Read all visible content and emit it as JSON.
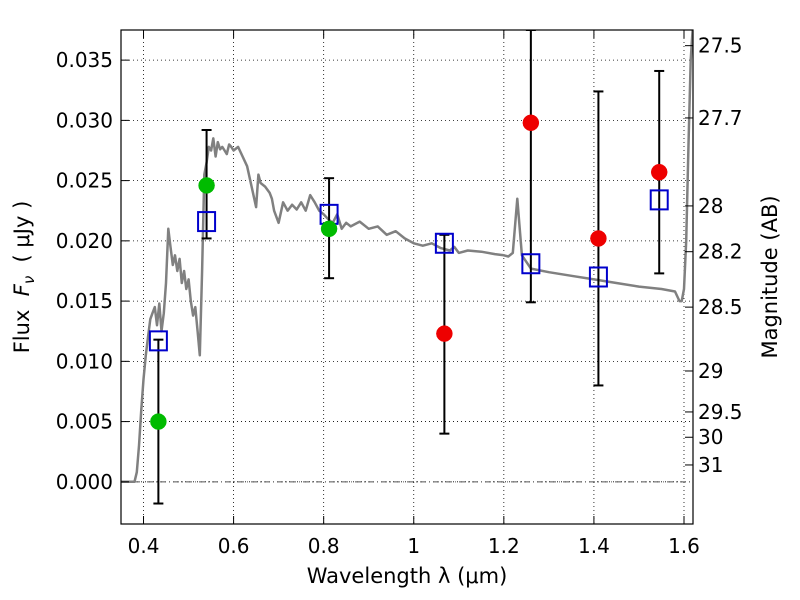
{
  "chart_data": {
    "type": "scatter",
    "title": "",
    "xlabel": "Wavelength  λ (μm)",
    "ylabel": "Flux  F_ν  ( μJy )",
    "ylabel_parts": {
      "prefix": "Flux  ",
      "symbol": "F",
      "subscript": "ν",
      "suffix": "  ( μJy )"
    },
    "y2label": "Magnitude (AB)",
    "xlim": [
      0.35,
      1.62
    ],
    "ylim": [
      -0.0035,
      0.0375
    ],
    "grid": true,
    "x_ticks": [
      0.4,
      0.6,
      0.8,
      1.0,
      1.2,
      1.4,
      1.6
    ],
    "x_tick_labels": [
      "0.4",
      "0.6",
      "0.8",
      "1",
      "1.2",
      "1.4",
      "1.6"
    ],
    "y_ticks": [
      0.0,
      0.005,
      0.01,
      0.015,
      0.02,
      0.025,
      0.03,
      0.035
    ],
    "y_tick_labels": [
      "0.000",
      "0.005",
      "0.010",
      "0.015",
      "0.020",
      "0.025",
      "0.030",
      "0.035"
    ],
    "y2_ticks": [
      {
        "flux": 0.0362,
        "label": "27.5"
      },
      {
        "flux": 0.0302,
        "label": "27.7"
      },
      {
        "flux": 0.0229,
        "label": "28"
      },
      {
        "flux": 0.0191,
        "label": "28.2"
      },
      {
        "flux": 0.0145,
        "label": "28.5"
      },
      {
        "flux": 0.0092,
        "label": "29"
      },
      {
        "flux": 0.0058,
        "label": "29.5"
      },
      {
        "flux": 0.0037,
        "label": "30"
      },
      {
        "flux": 0.0014,
        "label": "31"
      }
    ],
    "series": [
      {
        "name": "model SED",
        "kind": "line",
        "color": "#808080",
        "x": [
          0.35,
          0.38,
          0.385,
          0.39,
          0.395,
          0.4,
          0.405,
          0.41,
          0.415,
          0.42,
          0.425,
          0.43,
          0.435,
          0.44,
          0.445,
          0.45,
          0.455,
          0.46,
          0.465,
          0.47,
          0.475,
          0.48,
          0.485,
          0.49,
          0.495,
          0.5,
          0.505,
          0.51,
          0.515,
          0.52,
          0.525,
          0.53,
          0.535,
          0.54,
          0.545,
          0.55,
          0.555,
          0.56,
          0.565,
          0.57,
          0.575,
          0.58,
          0.585,
          0.59,
          0.595,
          0.6,
          0.61,
          0.62,
          0.63,
          0.64,
          0.65,
          0.655,
          0.66,
          0.67,
          0.68,
          0.685,
          0.69,
          0.7,
          0.71,
          0.72,
          0.73,
          0.74,
          0.75,
          0.76,
          0.77,
          0.78,
          0.79,
          0.8,
          0.81,
          0.82,
          0.83,
          0.84,
          0.85,
          0.86,
          0.88,
          0.9,
          0.92,
          0.94,
          0.96,
          0.98,
          1.0,
          1.02,
          1.04,
          1.06,
          1.08,
          1.09,
          1.1,
          1.12,
          1.15,
          1.18,
          1.2,
          1.21,
          1.22,
          1.23,
          1.24,
          1.26,
          1.3,
          1.35,
          1.4,
          1.45,
          1.5,
          1.55,
          1.58,
          1.59,
          1.595,
          1.6,
          1.605,
          1.61,
          1.615,
          1.62
        ],
        "y": [
          0.0,
          0.0,
          0.0008,
          0.003,
          0.006,
          0.0085,
          0.0105,
          0.012,
          0.0135,
          0.014,
          0.0145,
          0.013,
          0.0148,
          0.0125,
          0.014,
          0.0165,
          0.021,
          0.0195,
          0.018,
          0.0188,
          0.0175,
          0.0185,
          0.0165,
          0.0175,
          0.016,
          0.0168,
          0.015,
          0.0138,
          0.0145,
          0.0125,
          0.0105,
          0.0175,
          0.0255,
          0.0265,
          0.0278,
          0.0275,
          0.0285,
          0.027,
          0.0282,
          0.0276,
          0.0278,
          0.0275,
          0.0272,
          0.028,
          0.0278,
          0.0275,
          0.0278,
          0.027,
          0.0262,
          0.0245,
          0.0228,
          0.0255,
          0.0248,
          0.0245,
          0.024,
          0.0235,
          0.0225,
          0.0215,
          0.0232,
          0.0225,
          0.023,
          0.0226,
          0.0232,
          0.0225,
          0.0238,
          0.0232,
          0.0225,
          0.0222,
          0.0218,
          0.0215,
          0.0222,
          0.021,
          0.0215,
          0.0212,
          0.0216,
          0.021,
          0.0212,
          0.0205,
          0.0208,
          0.0202,
          0.0198,
          0.0196,
          0.0198,
          0.0194,
          0.0192,
          0.0195,
          0.019,
          0.0192,
          0.0191,
          0.0189,
          0.0188,
          0.0187,
          0.019,
          0.0235,
          0.0188,
          0.0177,
          0.0174,
          0.0171,
          0.0168,
          0.0165,
          0.0162,
          0.016,
          0.0158,
          0.015,
          0.015,
          0.016,
          0.02,
          0.028,
          0.035,
          0.038
        ]
      },
      {
        "name": "green points",
        "kind": "circle",
        "color": "#00bb00",
        "points": [
          {
            "x": 0.433,
            "y": 0.005
          },
          {
            "x": 0.54,
            "y": 0.0246
          },
          {
            "x": 0.812,
            "y": 0.021
          }
        ]
      },
      {
        "name": "red points",
        "kind": "circle",
        "color": "#ee0000",
        "points": [
          {
            "x": 1.068,
            "y": 0.0123
          },
          {
            "x": 1.26,
            "y": 0.0298
          },
          {
            "x": 1.41,
            "y": 0.0202
          },
          {
            "x": 1.545,
            "y": 0.0257
          }
        ]
      },
      {
        "name": "blue model points",
        "kind": "open-square",
        "color": "#0000cc",
        "points": [
          {
            "x": 0.433,
            "y": 0.0117
          },
          {
            "x": 0.54,
            "y": 0.0216
          },
          {
            "x": 0.812,
            "y": 0.0222
          },
          {
            "x": 1.068,
            "y": 0.0198
          },
          {
            "x": 1.26,
            "y": 0.0181
          },
          {
            "x": 1.41,
            "y": 0.017
          },
          {
            "x": 1.545,
            "y": 0.0234
          }
        ]
      },
      {
        "name": "error bars",
        "kind": "errorbar",
        "color": "#000000",
        "bars": [
          {
            "x": 0.433,
            "low": -0.0018,
            "high": 0.0118
          },
          {
            "x": 0.54,
            "low": 0.0202,
            "high": 0.0292
          },
          {
            "x": 0.812,
            "low": 0.0169,
            "high": 0.0252
          },
          {
            "x": 1.068,
            "low": 0.004,
            "high": 0.0205
          },
          {
            "x": 1.26,
            "low": 0.0149,
            "high": 0.0375
          },
          {
            "x": 1.41,
            "low": 0.008,
            "high": 0.0324
          },
          {
            "x": 1.545,
            "low": 0.0173,
            "high": 0.0341
          }
        ]
      }
    ]
  }
}
